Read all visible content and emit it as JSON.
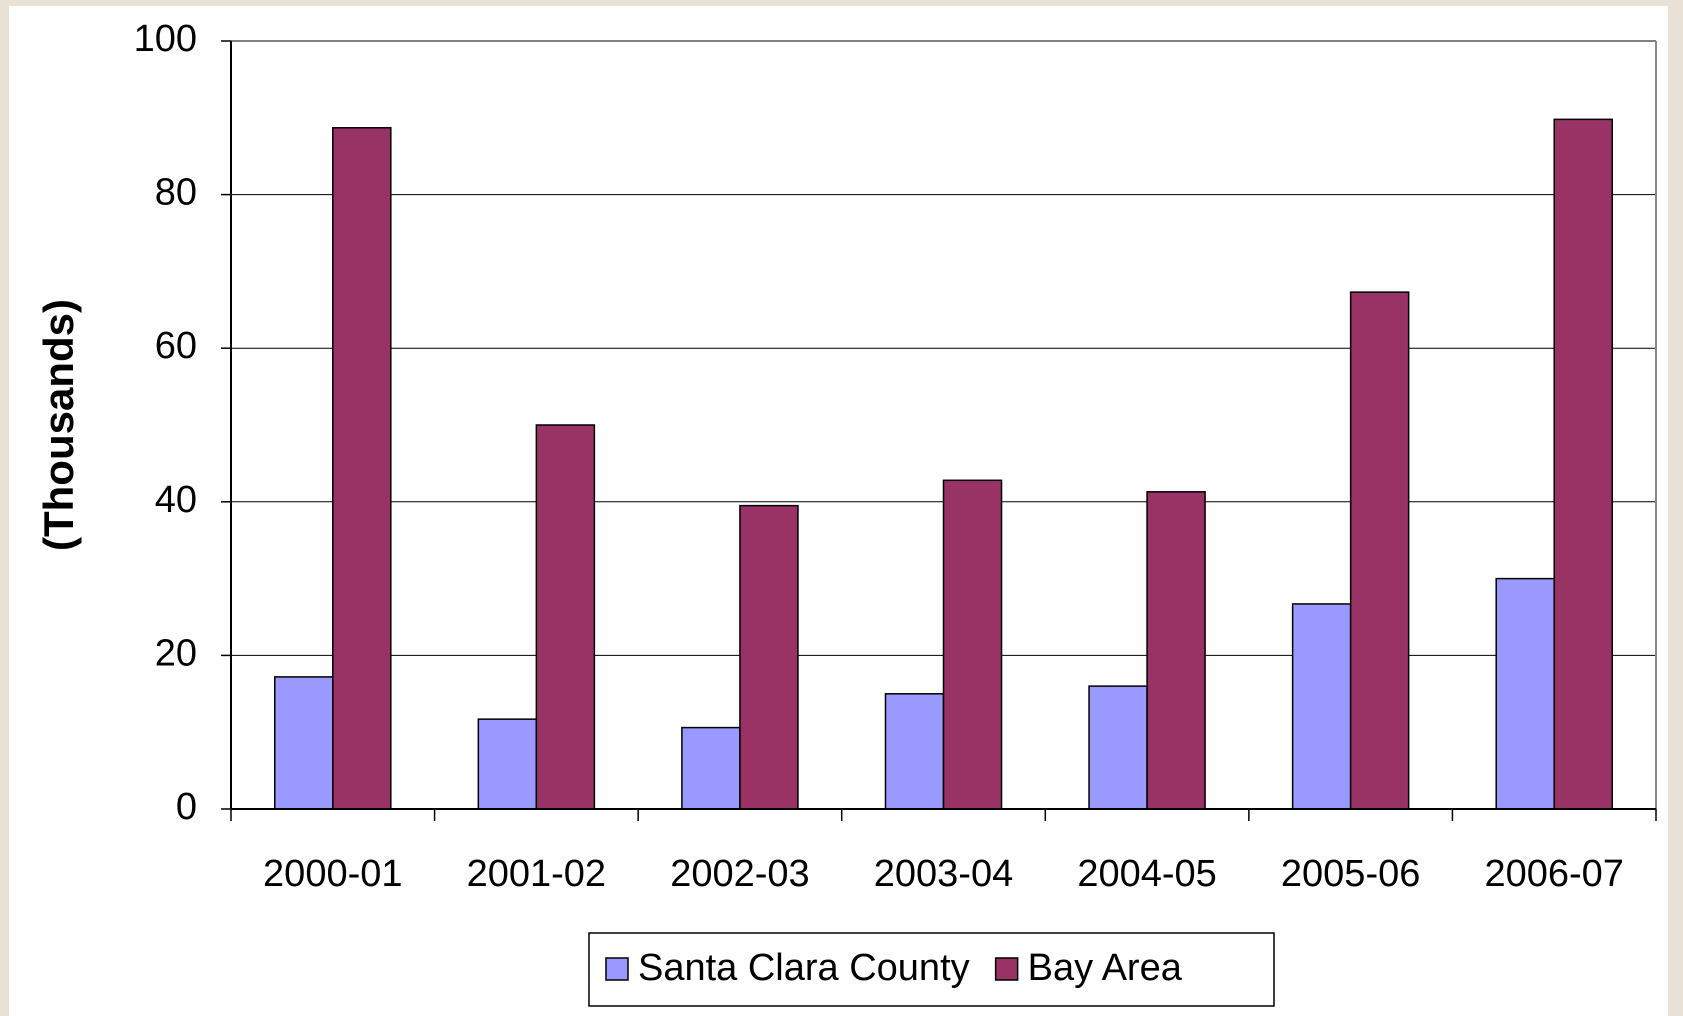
{
  "chart_data": {
    "type": "bar",
    "y_label": "(Thousands)",
    "categories": [
      "2000-01",
      "2001-02",
      "2002-03",
      "2003-04",
      "2004-05",
      "2005-06",
      "2006-07"
    ],
    "series": [
      {
        "name": "Santa Clara County",
        "color": "#9999ff",
        "values": [
          17.2,
          11.7,
          10.6,
          15,
          16,
          26.7,
          30
        ]
      },
      {
        "name": "Bay Area",
        "color": "#993366",
        "values": [
          88.7,
          50,
          39.5,
          42.8,
          41.3,
          67.3,
          89.8
        ]
      }
    ],
    "ylim": [
      0,
      100
    ],
    "yticks": [
      0,
      20,
      40,
      60,
      80,
      100
    ],
    "grid": true,
    "legend": "bottom"
  }
}
